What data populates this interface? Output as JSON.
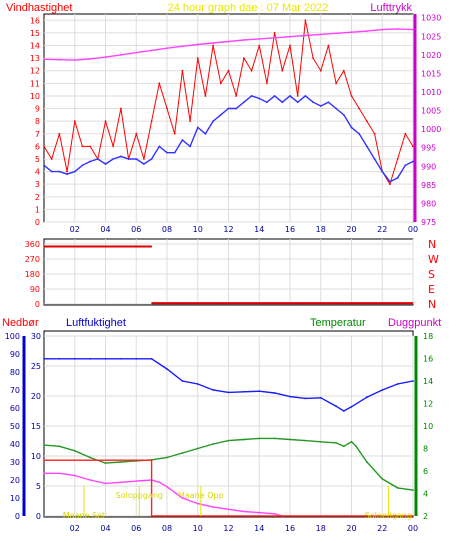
{
  "chart_data": [
    {
      "type": "line",
      "title": "24 hour graph dae : 07 Mar 2022",
      "ylabel_left": "Vindhastighet",
      "ylabel_right": "Lufttrykk",
      "x_tick_labels": [
        "02",
        "04",
        "06",
        "08",
        "10",
        "12",
        "14",
        "16",
        "18",
        "20",
        "22",
        "00"
      ],
      "y_left_ticks": [
        "0",
        "1",
        "2",
        "3",
        "4",
        "5",
        "6",
        "7",
        "8",
        "9",
        "10",
        "11",
        "12",
        "13",
        "14",
        "15",
        "16"
      ],
      "y_right_ticks": [
        "975",
        "980",
        "985",
        "990",
        "995",
        "1000",
        "1005",
        "1010",
        "1015",
        "1020",
        "1025",
        "1030"
      ],
      "ylim_left": [
        0,
        16.5
      ],
      "ylim_right": [
        975,
        1031
      ],
      "grid": true,
      "colors": {
        "gust": "#ff0000",
        "mean": "#3333ff",
        "pressure": "#ff44ff",
        "title": "#e8e800",
        "left_axis": "#ff0000",
        "right_axis": "#cc00cc"
      },
      "series": [
        {
          "key": "gust",
          "hours": [
            0,
            0.5,
            1,
            1.5,
            2,
            2.5,
            3,
            3.5,
            4,
            4.5,
            5,
            5.5,
            6,
            6.5,
            7,
            7.5,
            8,
            8.5,
            9,
            9.5,
            10,
            10.5,
            11,
            11.5,
            12,
            12.5,
            13,
            13.5,
            14,
            14.5,
            15,
            15.5,
            16,
            16.5,
            17,
            17.5,
            18,
            18.5,
            19,
            19.5,
            20,
            20.5,
            21,
            21.5,
            22,
            22.5,
            23,
            23.5,
            24
          ],
          "values": [
            6,
            5,
            7,
            4,
            8,
            6,
            6,
            5,
            8,
            6,
            9,
            5,
            7,
            5,
            8,
            11,
            9,
            7,
            12,
            8,
            13,
            10,
            14,
            11,
            12,
            10,
            13,
            12,
            14,
            11,
            15,
            12,
            14,
            10,
            16,
            13,
            12,
            14,
            11,
            12,
            10,
            9,
            8,
            7,
            4,
            3,
            5,
            7,
            6
          ]
        },
        {
          "key": "mean",
          "hours": [
            0,
            0.5,
            1,
            1.5,
            2,
            2.5,
            3,
            3.5,
            4,
            4.5,
            5,
            5.5,
            6,
            6.5,
            7,
            7.5,
            8,
            8.5,
            9,
            9.5,
            10,
            10.5,
            11,
            11.5,
            12,
            12.5,
            13,
            13.5,
            14,
            14.5,
            15,
            15.5,
            16,
            16.5,
            17,
            17.5,
            18,
            18.5,
            19,
            19.5,
            20,
            20.5,
            21,
            21.5,
            22,
            22.5,
            23,
            23.5,
            24
          ],
          "values": [
            4.5,
            4,
            4,
            3.8,
            4,
            4.5,
            4.8,
            5,
            4.6,
            5,
            5.2,
            5,
            5,
            4.6,
            5,
            6,
            5.5,
            5.5,
            6.5,
            6,
            7.5,
            7,
            8,
            8.5,
            9,
            9,
            9.5,
            10,
            9.8,
            9.5,
            10,
            9.5,
            10,
            9.5,
            10,
            9.5,
            9.2,
            9.5,
            9,
            8.5,
            7.5,
            7,
            6,
            5,
            4,
            3.2,
            3.5,
            4.5,
            4.8
          ]
        },
        {
          "key": "pressure",
          "hours": [
            0,
            1,
            2,
            3,
            4,
            5,
            6,
            7,
            8,
            9,
            10,
            11,
            12,
            13,
            14,
            15,
            16,
            17,
            18,
            19,
            20,
            21,
            22,
            23,
            24
          ],
          "values": [
            1018.8,
            1018.7,
            1018.6,
            1018.9,
            1019.4,
            1020,
            1020.6,
            1021.2,
            1021.8,
            1022.3,
            1022.8,
            1023.2,
            1023.6,
            1024,
            1024.3,
            1024.6,
            1024.9,
            1025.2,
            1025.5,
            1025.8,
            1026.1,
            1026.4,
            1026.8,
            1027,
            1026.8
          ]
        }
      ]
    },
    {
      "type": "scatter",
      "ylabel_right": "direction",
      "y_tick_labels": [
        "360",
        "270",
        "180",
        "90",
        "0"
      ],
      "compass_labels": [
        "N",
        "W",
        "S",
        "E",
        "N"
      ],
      "ylim": [
        0,
        360
      ],
      "color": "#dd0000",
      "series": [
        {
          "name": "vindretning",
          "segments": [
            {
              "from_hour": 0,
              "to_hour": 7.0,
              "level": 345
            },
            {
              "from_hour": 7.0,
              "to_hour": 24,
              "level": 5
            }
          ]
        }
      ]
    },
    {
      "type": "line",
      "labels": {
        "nedbor": "Nedbør",
        "luftfuktighet": "Luftfuktighet",
        "temperatur": "Temperatur",
        "duggpunkt": "Duggpunkt"
      },
      "x_tick_labels": [
        "02",
        "04",
        "06",
        "08",
        "10",
        "12",
        "14",
        "16",
        "18",
        "20",
        "22",
        "00"
      ],
      "y_ticks_nedbor": [
        "0",
        "10",
        "20",
        "30",
        "40",
        "50",
        "60",
        "70",
        "80",
        "90",
        "100"
      ],
      "y_ticks_fukt": [
        "0",
        "5",
        "10",
        "15",
        "20",
        "25",
        "30"
      ],
      "y_ticks_temp": [
        "2",
        "4",
        "6",
        "8",
        "10",
        "12",
        "14",
        "16",
        "18"
      ],
      "annotations": [
        {
          "text": "Soloppgang",
          "hour": 6.2
        },
        {
          "text": "Maane Set",
          "hour": 2.6
        },
        {
          "text": "Maane Opp",
          "hour": 10.2
        },
        {
          "text": "Solnedgang",
          "hour": 22.4
        }
      ],
      "colors": {
        "fukt": "#1a1aff",
        "temp": "#229922",
        "dugg": "#ff44ff",
        "nedbor": "#ff2222"
      },
      "series": [
        {
          "key": "fukt",
          "axis": "fukt",
          "ylim": [
            0,
            30
          ],
          "hours": [
            0,
            1,
            2,
            3,
            4,
            5,
            6,
            7,
            8,
            9,
            10,
            11,
            12,
            13,
            14,
            15,
            16,
            17,
            18,
            19,
            19.5,
            20,
            21,
            22,
            23,
            24
          ],
          "values": [
            26.2,
            26.2,
            26.2,
            26.2,
            26.2,
            26.2,
            26.2,
            26.2,
            24.5,
            22.5,
            22,
            21,
            20.6,
            20.7,
            20.8,
            20.5,
            19.9,
            19.6,
            19.7,
            18.3,
            17.5,
            18.2,
            19.8,
            21,
            22,
            22.5
          ]
        },
        {
          "key": "temp",
          "axis": "temp",
          "ylim": [
            2,
            18
          ],
          "hours": [
            0,
            1,
            2,
            3,
            4,
            5,
            6,
            7,
            8,
            9,
            10,
            11,
            12,
            13,
            14,
            15,
            16,
            17,
            18,
            19,
            19.5,
            20,
            20.3,
            21,
            22,
            23,
            24
          ],
          "values": [
            8.3,
            8.2,
            7.8,
            7.2,
            6.7,
            6.8,
            6.9,
            7.0,
            7.2,
            7.6,
            8.0,
            8.4,
            8.7,
            8.8,
            8.9,
            8.9,
            8.8,
            8.7,
            8.6,
            8.5,
            8.2,
            8.6,
            8.2,
            6.8,
            5.3,
            4.5,
            4.3
          ]
        },
        {
          "key": "dugg",
          "axis": "temp",
          "ylim": [
            2,
            18
          ],
          "hours": [
            0,
            1,
            2,
            3,
            4,
            5,
            6,
            7,
            7.5,
            8,
            9,
            10,
            11,
            12,
            13,
            14,
            15,
            15.5
          ],
          "values": [
            5.8,
            5.8,
            5.6,
            5.2,
            4.9,
            5.0,
            5.1,
            5.2,
            5.0,
            4.6,
            3.6,
            3.1,
            2.8,
            2.6,
            2.4,
            2.3,
            2.2,
            2.0
          ]
        },
        {
          "key": "nedbor",
          "axis": "nedbor",
          "ylim": [
            0,
            100
          ],
          "hours": [
            0,
            7.0,
            7.0,
            24
          ],
          "values": [
            31,
            31,
            0,
            0
          ]
        }
      ]
    }
  ]
}
